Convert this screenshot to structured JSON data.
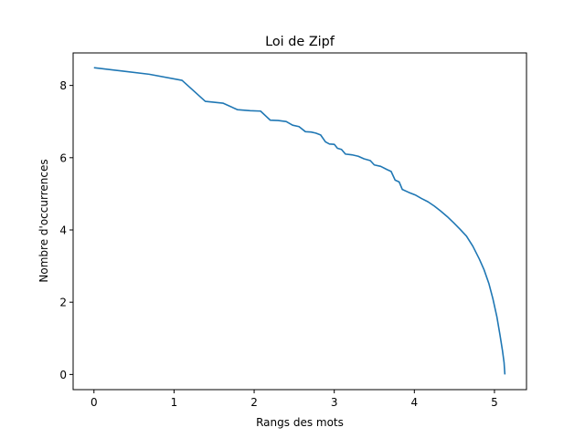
{
  "chart_data": {
    "type": "line",
    "title": "Loi de Zipf",
    "xlabel": "Rangs des mots",
    "ylabel": "Nombre d'occurrences",
    "xlim": [
      -0.26,
      5.4
    ],
    "ylim": [
      -0.42,
      8.9
    ],
    "xticks": [
      0,
      1,
      2,
      3,
      4,
      5
    ],
    "yticks": [
      0,
      2,
      4,
      6,
      8
    ],
    "grid": false,
    "legend": "none",
    "series": [
      {
        "color": "#1f77b4",
        "points": [
          [
            0.0,
            8.49
          ],
          [
            0.35,
            8.4
          ],
          [
            0.69,
            8.31
          ],
          [
            1.1,
            8.14
          ],
          [
            1.39,
            7.56
          ],
          [
            1.61,
            7.51
          ],
          [
            1.79,
            7.33
          ],
          [
            1.95,
            7.3
          ],
          [
            2.08,
            7.29
          ],
          [
            2.2,
            7.04
          ],
          [
            2.3,
            7.03
          ],
          [
            2.4,
            7.0
          ],
          [
            2.48,
            6.9
          ],
          [
            2.56,
            6.86
          ],
          [
            2.64,
            6.72
          ],
          [
            2.71,
            6.71
          ],
          [
            2.77,
            6.68
          ],
          [
            2.83,
            6.63
          ],
          [
            2.89,
            6.44
          ],
          [
            2.94,
            6.38
          ],
          [
            3.0,
            6.37
          ],
          [
            3.04,
            6.26
          ],
          [
            3.09,
            6.23
          ],
          [
            3.14,
            6.1
          ],
          [
            3.22,
            6.08
          ],
          [
            3.3,
            6.04
          ],
          [
            3.37,
            5.97
          ],
          [
            3.45,
            5.92
          ],
          [
            3.5,
            5.8
          ],
          [
            3.58,
            5.76
          ],
          [
            3.66,
            5.67
          ],
          [
            3.71,
            5.62
          ],
          [
            3.76,
            5.38
          ],
          [
            3.81,
            5.33
          ],
          [
            3.85,
            5.12
          ],
          [
            3.93,
            5.04
          ],
          [
            4.01,
            4.97
          ],
          [
            4.09,
            4.87
          ],
          [
            4.17,
            4.78
          ],
          [
            4.25,
            4.66
          ],
          [
            4.33,
            4.52
          ],
          [
            4.41,
            4.37
          ],
          [
            4.49,
            4.2
          ],
          [
            4.57,
            4.02
          ],
          [
            4.65,
            3.83
          ],
          [
            4.73,
            3.55
          ],
          [
            4.81,
            3.2
          ],
          [
            4.87,
            2.9
          ],
          [
            4.93,
            2.52
          ],
          [
            4.98,
            2.1
          ],
          [
            5.03,
            1.6
          ],
          [
            5.07,
            1.08
          ],
          [
            5.1,
            0.66
          ],
          [
            5.12,
            0.33
          ],
          [
            5.13,
            0.0
          ]
        ]
      }
    ]
  }
}
